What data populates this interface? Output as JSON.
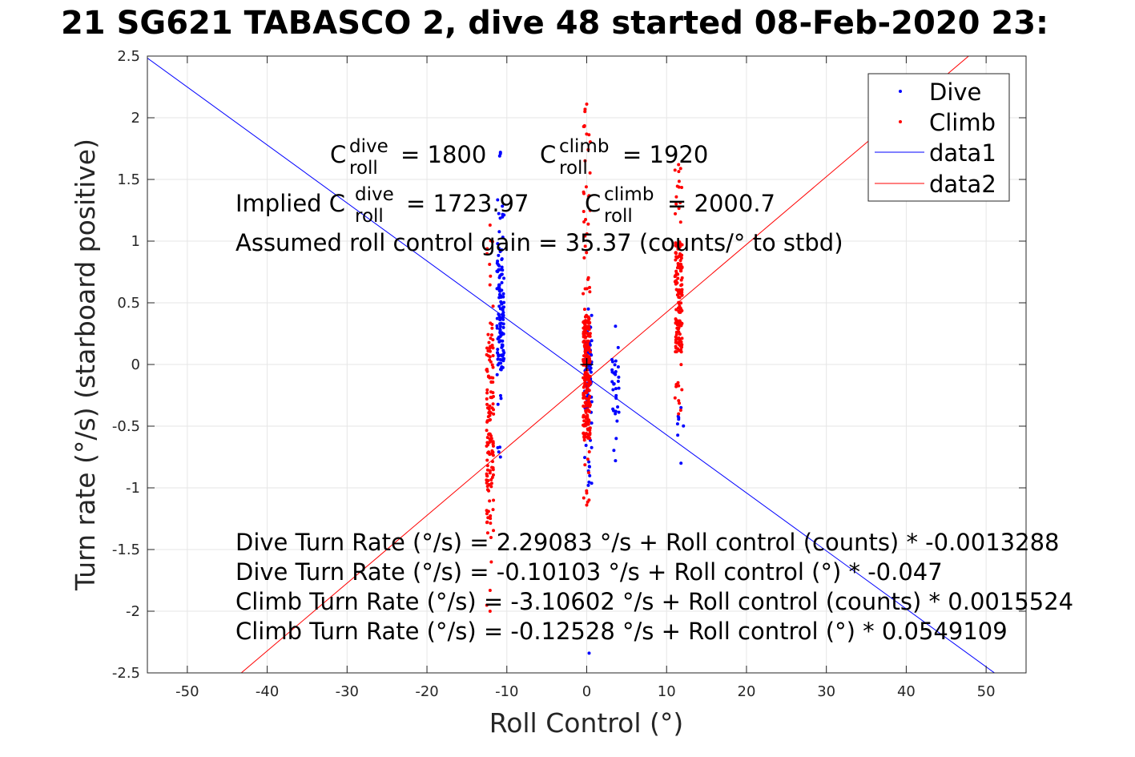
{
  "title": "SG621 TABASCO 2, dive 48 started 08-Feb-2020 23:",
  "title_prefix": "21",
  "chart_data": {
    "type": "scatter",
    "xlabel": "Roll Control (°)",
    "ylabel": "Turn rate (°/s) (starboard positive)",
    "xlim": [
      -55,
      55
    ],
    "ylim": [
      -2.5,
      2.5
    ],
    "xticks": [
      -50,
      -40,
      -30,
      -20,
      -10,
      0,
      10,
      20,
      30,
      40,
      50
    ],
    "yticks": [
      -2.5,
      -2,
      -1.5,
      -1,
      -0.5,
      0,
      0.5,
      1,
      1.5,
      2,
      2.5
    ],
    "grid": true,
    "legend_position": "top-right",
    "legend": [
      "Dive",
      "Climb",
      "data1",
      "data2"
    ],
    "colors": {
      "dive": "#0000ff",
      "climb": "#ff0000",
      "text": "#000000",
      "grid": "#e6e6e6",
      "axis": "#262626"
    },
    "series": [
      {
        "name": "Dive",
        "kind": "points",
        "clusters": [
          {
            "x": -10.8,
            "y_min": -0.75,
            "y_max": 1.72,
            "core": [
              -0.05,
              0.9
            ],
            "n": 130
          },
          {
            "x": 0.2,
            "y_min": -0.98,
            "y_max": 0.45,
            "core": [
              -0.4,
              0.2
            ],
            "n": 90
          },
          {
            "x": 3.6,
            "y_min": -0.78,
            "y_max": 0.31,
            "core": [
              -0.4,
              0.1
            ],
            "n": 30
          },
          {
            "x": 11.8,
            "y_min": -0.8,
            "y_max": -0.35,
            "core": [
              -0.6,
              -0.4
            ],
            "n": 6
          }
        ],
        "outliers": [
          {
            "x": 0.3,
            "y": -2.34
          },
          {
            "x": -10.9,
            "y": 1.69
          }
        ]
      },
      {
        "name": "Climb",
        "kind": "points",
        "clusters": [
          {
            "x": -12.1,
            "y_min": -2.0,
            "y_max": 1.13,
            "core": [
              -1.3,
              0.3
            ],
            "n": 140
          },
          {
            "x": 0.0,
            "y_min": -1.14,
            "y_max": 2.11,
            "core": [
              -0.6,
              0.4
            ],
            "n": 260
          },
          {
            "x": 11.5,
            "y_min": -0.4,
            "y_max": 1.62,
            "core": [
              0.1,
              1.0
            ],
            "n": 160
          }
        ]
      },
      {
        "name": "data1",
        "kind": "line",
        "intercept": -0.10103,
        "slope": -0.047
      },
      {
        "name": "data2",
        "kind": "line",
        "intercept": -0.12528,
        "slope": 0.0549109
      }
    ],
    "marker": {
      "x": 0,
      "y": 0,
      "symbol": "+"
    },
    "annotations": {
      "c_dive_value": "= 1800",
      "c_climb_value": "= 1920",
      "implied_prefix": "Implied C",
      "implied_dive_value": "= 1723.97",
      "implied_climb_value": "= 2000.7",
      "gain": "Assumed roll control gain = 35.37 (counts/° to stbd)",
      "eq1": "Dive Turn Rate (°/s) = 2.29083 °/s + Roll control (counts) * -0.0013288",
      "eq2": "Dive Turn Rate (°/s) = -0.10103 °/s + Roll control (°) * -0.047",
      "eq3": "Climb Turn Rate (°/s) = -3.10602 °/s + Roll control (counts) * 0.0015524",
      "eq4": "Climb Turn Rate (°/s) = -0.12528 °/s + Roll control (°) * 0.0549109",
      "c_letter": "C",
      "sub_roll": "roll",
      "sup_dive": "dive",
      "sup_climb": "climb"
    }
  }
}
